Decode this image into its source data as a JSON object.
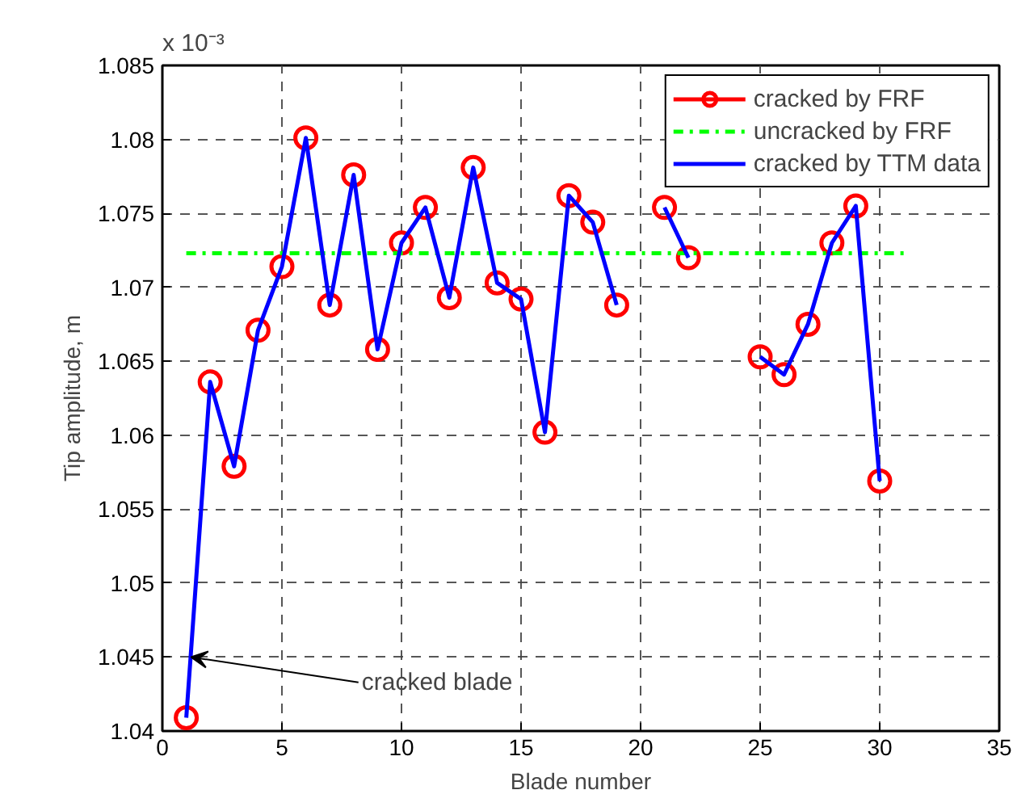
{
  "chart_data": {
    "type": "line",
    "xlabel": "Blade number",
    "ylabel": "Tip amplitude, m",
    "x": [
      1,
      2,
      3,
      4,
      5,
      6,
      7,
      8,
      9,
      10,
      11,
      12,
      13,
      14,
      15,
      16,
      17,
      18,
      19,
      20,
      21,
      22,
      23,
      24,
      25,
      26,
      27,
      28,
      29,
      30
    ],
    "series": [
      {
        "name": "cracked by FRF",
        "type": "scatter",
        "color": "#ff0000",
        "marker": "circle",
        "values": [
          1.0409,
          1.0636,
          1.0579,
          1.0671,
          1.0714,
          1.0801,
          1.0688,
          1.0776,
          1.0658,
          1.073,
          1.0754,
          1.0693,
          1.0781,
          1.0703,
          1.0692,
          1.0602,
          1.0762,
          1.0744,
          1.0688,
          null,
          1.0754,
          1.072,
          null,
          null,
          1.0653,
          1.0641,
          1.0675,
          1.073,
          1.0755,
          1.0569
        ]
      },
      {
        "name": "uncracked by FRF",
        "color": "#00ff00",
        "line_style": "dashdot",
        "x": [
          1,
          31
        ],
        "values": [
          1.0723,
          1.0723
        ]
      },
      {
        "name": "cracked by TTM data",
        "color": "#0000ff",
        "marker": "none",
        "values": [
          1.0409,
          1.0636,
          1.0579,
          1.0671,
          1.0714,
          1.0801,
          1.0688,
          1.0776,
          1.0658,
          1.073,
          1.0754,
          1.0693,
          1.0781,
          1.0703,
          1.0692,
          1.0602,
          1.0762,
          1.0744,
          1.0688,
          null,
          1.0754,
          1.072,
          null,
          null,
          1.0653,
          1.0641,
          1.0675,
          1.073,
          1.0755,
          1.0569
        ]
      }
    ],
    "xlim": [
      0,
      35
    ],
    "xticks": [
      0,
      5,
      10,
      15,
      20,
      25,
      30,
      35
    ],
    "ylim": [
      1.04,
      1.085
    ],
    "yticks": [
      1.04,
      {
        "value": 1.045,
        "label": "1.045"
      },
      1.05,
      1.055,
      1.06,
      1.065,
      1.07,
      1.075,
      1.08,
      1.085
    ],
    "annotations": [
      "x 10⁻³",
      {
        "text": "cracked blade",
        "x": 1.2,
        "y": 1.045
      }
    ],
    "grid": true,
    "legend": "top right"
  }
}
